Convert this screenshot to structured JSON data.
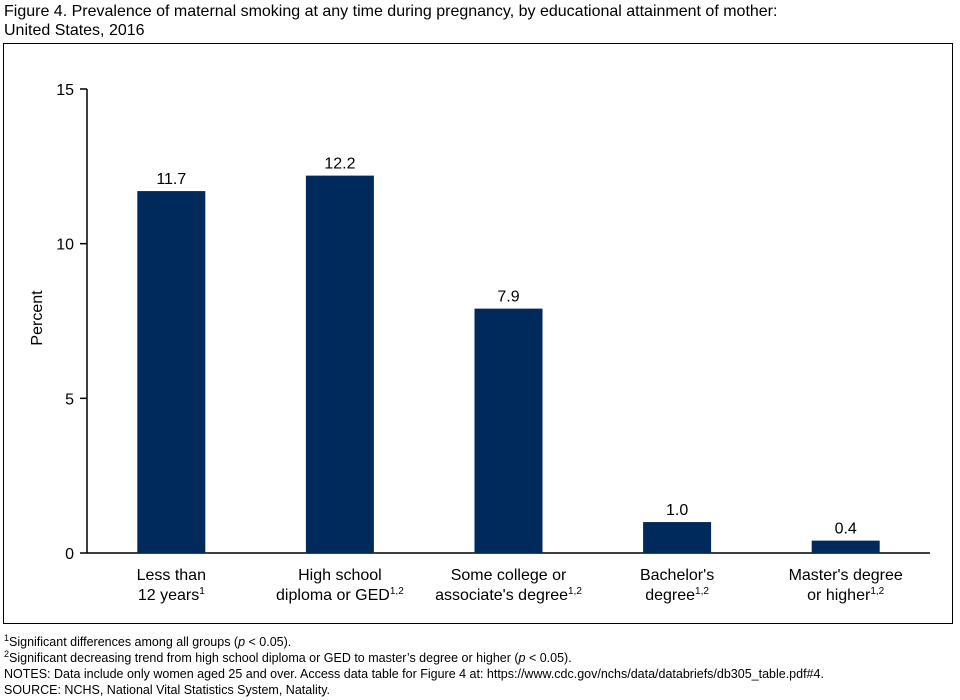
{
  "title_line1": "Figure 4. Prevalence of maternal smoking at any time during pregnancy, by educational attainment of mother:",
  "title_line2": "United States, 2016",
  "chart_data": {
    "type": "bar",
    "categories": [
      {
        "line1": "Less than",
        "line2": "12 years",
        "sup": "1"
      },
      {
        "line1": "High school",
        "line2": "diploma or GED",
        "sup": "1,2"
      },
      {
        "line1": "Some college or",
        "line2": "associate's degree",
        "sup": "1,2"
      },
      {
        "line1": "Bachelor's",
        "line2": "degree",
        "sup": "1,2"
      },
      {
        "line1": "Master's degree",
        "line2": "or higher",
        "sup": "1,2"
      }
    ],
    "values": [
      11.7,
      12.2,
      7.9,
      1.0,
      0.4
    ],
    "value_labels": [
      "11.7",
      "12.2",
      "7.9",
      "1.0",
      "0.4"
    ],
    "ylabel": "Percent",
    "ylim": [
      0,
      15
    ],
    "yticks": [
      0,
      5,
      10,
      15
    ],
    "bar_color": "#002a5c",
    "grid": false
  },
  "notes": {
    "note1_sup": "1",
    "note1_text": "Significant differences among all groups (",
    "note1_p": "p",
    "note1_end": " < 0.05).",
    "note2_sup": "2",
    "note2_text": "Significant decreasing trend from high school diploma or GED to master’s degree or higher (",
    "note2_p": "p",
    "note2_end": " < 0.05).",
    "note3": "NOTES: Data include only women aged 25 and over. Access data table for Figure 4 at: https://www.cdc.gov/nchs/data/databriefs/db305_table.pdf#4.",
    "note4": "SOURCE: NCHS, National Vital Statistics System, Natality."
  }
}
